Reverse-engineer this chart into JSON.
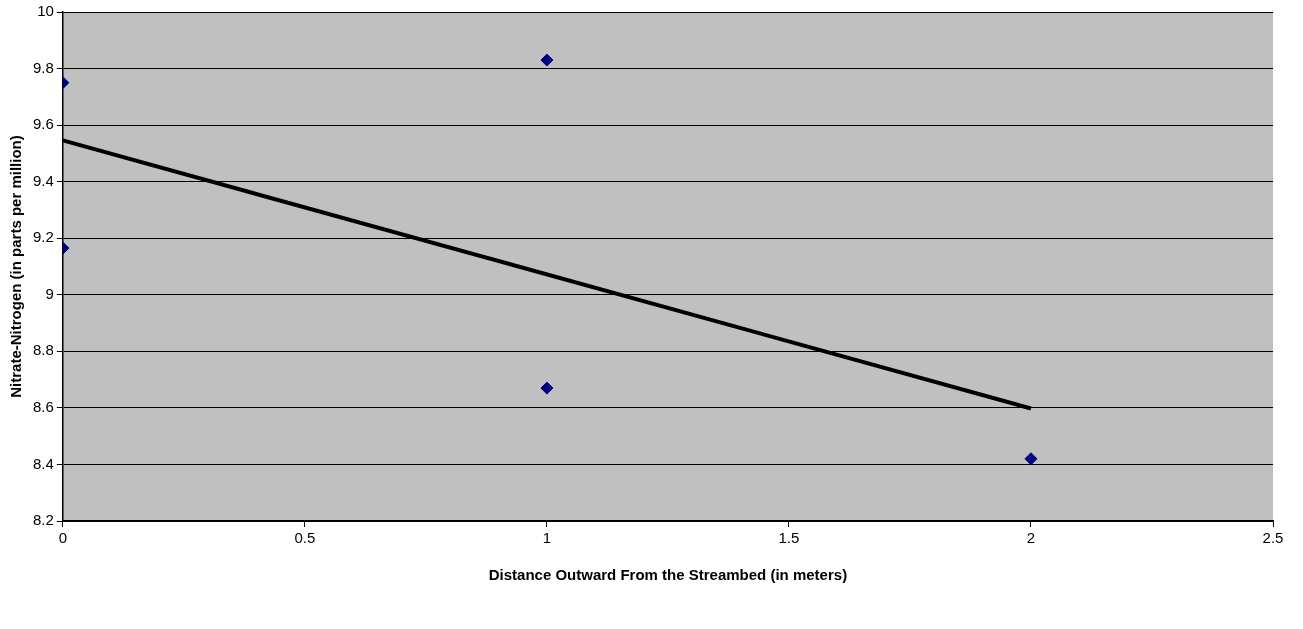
{
  "chart_data": {
    "type": "scatter",
    "xlabel": "Distance Outward From the Streambed (in meters)",
    "ylabel": "Nitrate-Nitrogen (in parts per million)",
    "xlim": [
      0,
      2.5
    ],
    "xticks": [
      0,
      0.5,
      1,
      1.5,
      2,
      2.5
    ],
    "ylim": [
      8.2,
      10
    ],
    "yticks": [
      8.2,
      8.4,
      8.6,
      8.8,
      9,
      9.2,
      9.4,
      9.6,
      9.8,
      10
    ],
    "grid": "y",
    "legend": false,
    "marker": "diamond",
    "series": [
      {
        "color": "#000080",
        "x": [
          0,
          0,
          1,
          1,
          2
        ],
        "values": [
          9.75,
          9.165,
          9.83,
          8.67,
          8.42
        ]
      },
      {
        "type": "line",
        "color": "#000000",
        "x": [
          0,
          2
        ],
        "values": [
          9.546,
          8.598
        ],
        "marker": "none"
      }
    ]
  }
}
